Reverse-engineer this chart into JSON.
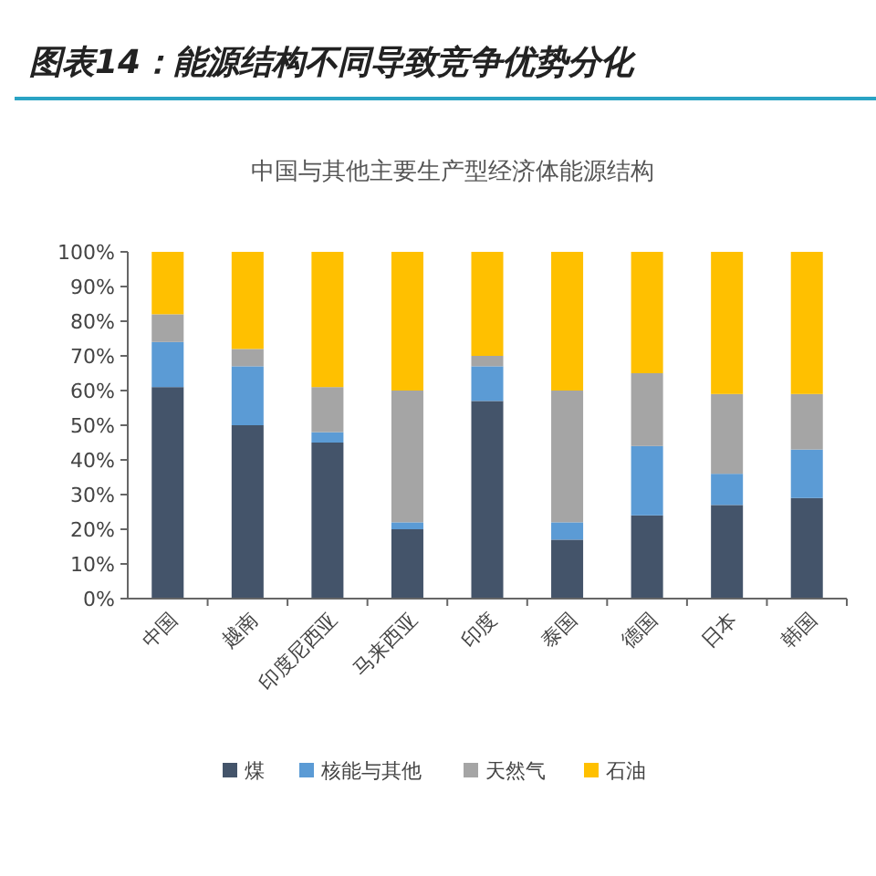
{
  "chart_data": {
    "type": "bar",
    "stacked": true,
    "title": "图表14：能源结构不同导致竞争优势分化",
    "subtitle": "中国与其他主要生产型经济体能源结构",
    "categories": [
      "中国",
      "越南",
      "印度尼西亚",
      "马来西亚",
      "印度",
      "泰国",
      "德国",
      "日本",
      "韩国"
    ],
    "series": [
      {
        "name": "煤",
        "color": "#44546a",
        "values": [
          61,
          50,
          45,
          20,
          57,
          17,
          24,
          27,
          29
        ]
      },
      {
        "name": "核能与其他",
        "color": "#5b9bd5",
        "values": [
          13,
          17,
          3,
          2,
          10,
          5,
          20,
          9,
          14
        ]
      },
      {
        "name": "天然气",
        "color": "#a5a5a5",
        "values": [
          8,
          5,
          13,
          38,
          3,
          38,
          21,
          23,
          16
        ]
      },
      {
        "name": "石油",
        "color": "#ffc000",
        "values": [
          18,
          28,
          39,
          40,
          30,
          40,
          35,
          41,
          41
        ]
      }
    ],
    "ylim": [
      0,
      100
    ],
    "yticks": [
      {
        "value": 0,
        "label": "0%"
      },
      {
        "value": 10,
        "label": "10%"
      },
      {
        "value": 20,
        "label": "20%"
      },
      {
        "value": 30,
        "label": "30%"
      },
      {
        "value": 40,
        "label": "40%"
      },
      {
        "value": 50,
        "label": "50%"
      },
      {
        "value": 60,
        "label": "60%"
      },
      {
        "value": 70,
        "label": "70%"
      },
      {
        "value": 80,
        "label": "80%"
      },
      {
        "value": 90,
        "label": "90%"
      },
      {
        "value": 100,
        "label": "100%"
      }
    ],
    "grid": false,
    "legend": "bottom"
  }
}
